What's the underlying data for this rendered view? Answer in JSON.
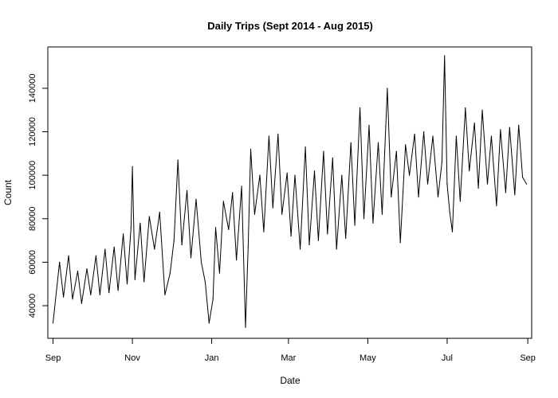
{
  "chart_data": {
    "type": "line",
    "title": "Daily Trips (Sept 2014 - Aug 2015)",
    "xlabel": "Date",
    "ylabel": "Count",
    "x_ticks": [
      {
        "label": "Sep",
        "date": "2014-09-01"
      },
      {
        "label": "Nov",
        "date": "2014-11-01"
      },
      {
        "label": "Jan",
        "date": "2015-01-01"
      },
      {
        "label": "Mar",
        "date": "2015-03-01"
      },
      {
        "label": "May",
        "date": "2015-05-01"
      },
      {
        "label": "Jul",
        "date": "2015-07-01"
      },
      {
        "label": "Sep",
        "date": "2015-09-01"
      }
    ],
    "y_ticks": [
      40000,
      60000,
      80000,
      100000,
      120000,
      140000
    ],
    "xlim": [
      "2014-08-28",
      "2015-09-04"
    ],
    "ylim": [
      25000,
      159000
    ],
    "grid": false,
    "legend": "none",
    "series": [
      {
        "color": "#000000",
        "points": [
          [
            "2014-09-01",
            32000
          ],
          [
            "2014-09-06",
            60000
          ],
          [
            "2014-09-09",
            44000
          ],
          [
            "2014-09-13",
            63000
          ],
          [
            "2014-09-16",
            43000
          ],
          [
            "2014-09-20",
            56000
          ],
          [
            "2014-09-23",
            41000
          ],
          [
            "2014-09-27",
            57000
          ],
          [
            "2014-09-30",
            45000
          ],
          [
            "2014-10-04",
            63000
          ],
          [
            "2014-10-07",
            45000
          ],
          [
            "2014-10-11",
            66000
          ],
          [
            "2014-10-14",
            46000
          ],
          [
            "2014-10-18",
            67000
          ],
          [
            "2014-10-21",
            47000
          ],
          [
            "2014-10-25",
            73000
          ],
          [
            "2014-10-28",
            50000
          ],
          [
            "2014-10-31",
            76000
          ],
          [
            "2014-11-01",
            104000
          ],
          [
            "2014-11-03",
            52000
          ],
          [
            "2014-11-07",
            78000
          ],
          [
            "2014-11-10",
            51000
          ],
          [
            "2014-11-14",
            81000
          ],
          [
            "2014-11-18",
            66000
          ],
          [
            "2014-11-22",
            83000
          ],
          [
            "2014-11-26",
            45000
          ],
          [
            "2014-11-30",
            55000
          ],
          [
            "2014-12-03",
            70000
          ],
          [
            "2014-12-06",
            107000
          ],
          [
            "2014-12-09",
            68000
          ],
          [
            "2014-12-13",
            93000
          ],
          [
            "2014-12-16",
            62000
          ],
          [
            "2014-12-20",
            89000
          ],
          [
            "2014-12-24",
            60000
          ],
          [
            "2014-12-27",
            51000
          ],
          [
            "2014-12-30",
            32000
          ],
          [
            "2015-01-02",
            43000
          ],
          [
            "2015-01-04",
            76000
          ],
          [
            "2015-01-07",
            55000
          ],
          [
            "2015-01-10",
            88000
          ],
          [
            "2015-01-14",
            75000
          ],
          [
            "2015-01-17",
            92000
          ],
          [
            "2015-01-20",
            61000
          ],
          [
            "2015-01-24",
            95000
          ],
          [
            "2015-01-27",
            30000
          ],
          [
            "2015-01-29",
            67000
          ],
          [
            "2015-01-31",
            112000
          ],
          [
            "2015-02-03",
            82000
          ],
          [
            "2015-02-07",
            100000
          ],
          [
            "2015-02-10",
            74000
          ],
          [
            "2015-02-14",
            118000
          ],
          [
            "2015-02-17",
            85000
          ],
          [
            "2015-02-21",
            119000
          ],
          [
            "2015-02-24",
            82000
          ],
          [
            "2015-02-28",
            101000
          ],
          [
            "2015-03-03",
            72000
          ],
          [
            "2015-03-06",
            100000
          ],
          [
            "2015-03-10",
            66000
          ],
          [
            "2015-03-14",
            113000
          ],
          [
            "2015-03-17",
            68000
          ],
          [
            "2015-03-21",
            102000
          ],
          [
            "2015-03-24",
            70000
          ],
          [
            "2015-03-28",
            111000
          ],
          [
            "2015-03-31",
            73000
          ],
          [
            "2015-04-04",
            108000
          ],
          [
            "2015-04-07",
            66000
          ],
          [
            "2015-04-11",
            100000
          ],
          [
            "2015-04-14",
            71000
          ],
          [
            "2015-04-18",
            115000
          ],
          [
            "2015-04-21",
            77000
          ],
          [
            "2015-04-25",
            131000
          ],
          [
            "2015-04-28",
            80000
          ],
          [
            "2015-05-02",
            123000
          ],
          [
            "2015-05-05",
            78000
          ],
          [
            "2015-05-09",
            115000
          ],
          [
            "2015-05-12",
            82000
          ],
          [
            "2015-05-16",
            140000
          ],
          [
            "2015-05-19",
            90000
          ],
          [
            "2015-05-23",
            111000
          ],
          [
            "2015-05-26",
            69000
          ],
          [
            "2015-05-30",
            114000
          ],
          [
            "2015-06-02",
            100000
          ],
          [
            "2015-06-06",
            119000
          ],
          [
            "2015-06-09",
            90000
          ],
          [
            "2015-06-13",
            120000
          ],
          [
            "2015-06-16",
            96000
          ],
          [
            "2015-06-20",
            118000
          ],
          [
            "2015-06-24",
            90000
          ],
          [
            "2015-06-27",
            106000
          ],
          [
            "2015-06-29",
            155000
          ],
          [
            "2015-07-01",
            96000
          ],
          [
            "2015-07-03",
            83000
          ],
          [
            "2015-07-05",
            74000
          ],
          [
            "2015-07-08",
            118000
          ],
          [
            "2015-07-11",
            88000
          ],
          [
            "2015-07-15",
            131000
          ],
          [
            "2015-07-18",
            102000
          ],
          [
            "2015-07-22",
            124000
          ],
          [
            "2015-07-25",
            94000
          ],
          [
            "2015-07-28",
            130000
          ],
          [
            "2015-08-01",
            96000
          ],
          [
            "2015-08-04",
            118000
          ],
          [
            "2015-08-08",
            86000
          ],
          [
            "2015-08-11",
            121000
          ],
          [
            "2015-08-15",
            92000
          ],
          [
            "2015-08-18",
            122000
          ],
          [
            "2015-08-22",
            91000
          ],
          [
            "2015-08-25",
            123000
          ],
          [
            "2015-08-28",
            99000
          ],
          [
            "2015-08-31",
            96000
          ]
        ]
      }
    ]
  }
}
